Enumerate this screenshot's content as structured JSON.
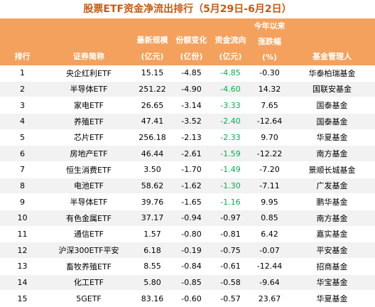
{
  "title": "股票ETF资金净流出排行（5月29日-6月2日）",
  "headers": {
    "rank": "排行",
    "name": "证券简称",
    "scale_l1": "最新规模",
    "scale_l2": "(亿元)",
    "share_l1": "份额变化",
    "share_l2": "(亿份)",
    "flow_l1": "资金流向",
    "flow_l2": "(亿元)",
    "ytd_l1": "今年以来",
    "ytd_l2": "涨跌幅",
    "ytd_l3": "(%)",
    "manager": "基金管理人"
  },
  "rows": [
    {
      "rank": "1",
      "name": "央企红利ETF",
      "scale": "15.15",
      "share": "-4.85",
      "flow": "-4.85",
      "ytd": "-0.30",
      "manager": "华泰柏瑞基金",
      "flow_green": true
    },
    {
      "rank": "2",
      "name": "半导体ETF",
      "scale": "251.22",
      "share": "-4.90",
      "flow": "-4.60",
      "ytd": "14.32",
      "manager": "国联安基金",
      "flow_green": true
    },
    {
      "rank": "3",
      "name": "家电ETF",
      "scale": "26.65",
      "share": "-3.14",
      "flow": "-3.33",
      "ytd": "7.65",
      "manager": "国泰基金",
      "flow_green": true
    },
    {
      "rank": "4",
      "name": "养殖ETF",
      "scale": "47.41",
      "share": "-3.52",
      "flow": "-2.40",
      "ytd": "-12.64",
      "manager": "国泰基金",
      "flow_green": true
    },
    {
      "rank": "5",
      "name": "芯片ETF",
      "scale": "256.18",
      "share": "-2.13",
      "flow": "-2.33",
      "ytd": "9.70",
      "manager": "华夏基金",
      "flow_green": true
    },
    {
      "rank": "6",
      "name": "房地产ETF",
      "scale": "46.44",
      "share": "-2.61",
      "flow": "-1.59",
      "ytd": "-12.22",
      "manager": "南方基金",
      "flow_green": true
    },
    {
      "rank": "7",
      "name": "恒生消费ETF",
      "scale": "3.50",
      "share": "-1.70",
      "flow": "-1.49",
      "ytd": "-7.20",
      "manager": "景顺长城基金",
      "flow_green": true
    },
    {
      "rank": "8",
      "name": "电池ETF",
      "scale": "58.62",
      "share": "-1.62",
      "flow": "-1.30",
      "ytd": "-7.11",
      "manager": "广发基金",
      "flow_green": true
    },
    {
      "rank": "9",
      "name": "半导体ETF",
      "scale": "39.76",
      "share": "-1.65",
      "flow": "-1.16",
      "ytd": "9.95",
      "manager": "鹏华基金",
      "flow_green": true
    },
    {
      "rank": "10",
      "name": "有色金属ETF",
      "scale": "37.17",
      "share": "-0.94",
      "flow": "-0.97",
      "ytd": "0.85",
      "manager": "南方基金",
      "flow_green": false
    },
    {
      "rank": "11",
      "name": "通信ETF",
      "scale": "1.57",
      "share": "-0.80",
      "flow": "-0.81",
      "ytd": "6.42",
      "manager": "嘉实基金",
      "flow_green": false
    },
    {
      "rank": "12",
      "name": "沪深300ETF平安",
      "scale": "6.18",
      "share": "-0.19",
      "flow": "-0.75",
      "ytd": "-0.07",
      "manager": "平安基金",
      "flow_green": false
    },
    {
      "rank": "13",
      "name": "畜牧养殖ETF",
      "scale": "8.55",
      "share": "-0.84",
      "flow": "-0.61",
      "ytd": "-12.44",
      "manager": "招商基金",
      "flow_green": false
    },
    {
      "rank": "14",
      "name": "化工ETF",
      "scale": "5.80",
      "share": "-0.85",
      "flow": "-0.58",
      "ytd": "-9.64",
      "manager": "华宝基金",
      "flow_green": false
    },
    {
      "rank": "15",
      "name": "5GETF",
      "scale": "83.16",
      "share": "-0.60",
      "flow": "-0.57",
      "ytd": "23.67",
      "manager": "华夏基金",
      "flow_green": false
    }
  ],
  "colors": {
    "header_bg": "#f4a15d",
    "title": "#c55a11",
    "green": "#00b050",
    "stripe": "#f2f2f2"
  }
}
